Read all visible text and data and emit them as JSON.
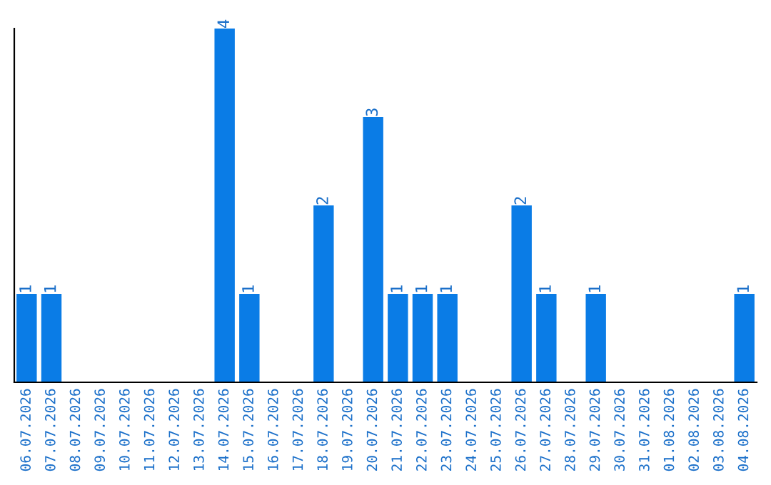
{
  "chart_data": {
    "type": "bar",
    "categories": [
      "06.07.2026",
      "07.07.2026",
      "08.07.2026",
      "09.07.2026",
      "10.07.2026",
      "11.07.2026",
      "12.07.2026",
      "13.07.2026",
      "14.07.2026",
      "15.07.2026",
      "16.07.2026",
      "17.07.2026",
      "18.07.2026",
      "19.07.2026",
      "20.07.2026",
      "21.07.2026",
      "22.07.2026",
      "23.07.2026",
      "24.07.2026",
      "25.07.2026",
      "26.07.2026",
      "27.07.2026",
      "28.07.2026",
      "29.07.2026",
      "30.07.2026",
      "31.07.2026",
      "01.08.2026",
      "02.08.2026",
      "03.08.2026",
      "04.08.2026"
    ],
    "values": [
      1,
      1,
      0,
      0,
      0,
      0,
      0,
      0,
      4,
      1,
      0,
      0,
      2,
      0,
      3,
      1,
      1,
      1,
      0,
      0,
      2,
      1,
      0,
      1,
      0,
      0,
      0,
      0,
      0,
      1
    ],
    "value_labels": [
      "1",
      "1",
      null,
      null,
      null,
      null,
      null,
      null,
      "4",
      "1",
      null,
      null,
      "2",
      null,
      "3",
      "1",
      "1",
      "1",
      null,
      null,
      "2",
      "1",
      null,
      "1",
      null,
      null,
      null,
      null,
      null,
      "1"
    ],
    "color": "#0a7ce6",
    "ylim": [
      0,
      4
    ],
    "tick_labels": "x",
    "grid": false,
    "legend": false
  }
}
